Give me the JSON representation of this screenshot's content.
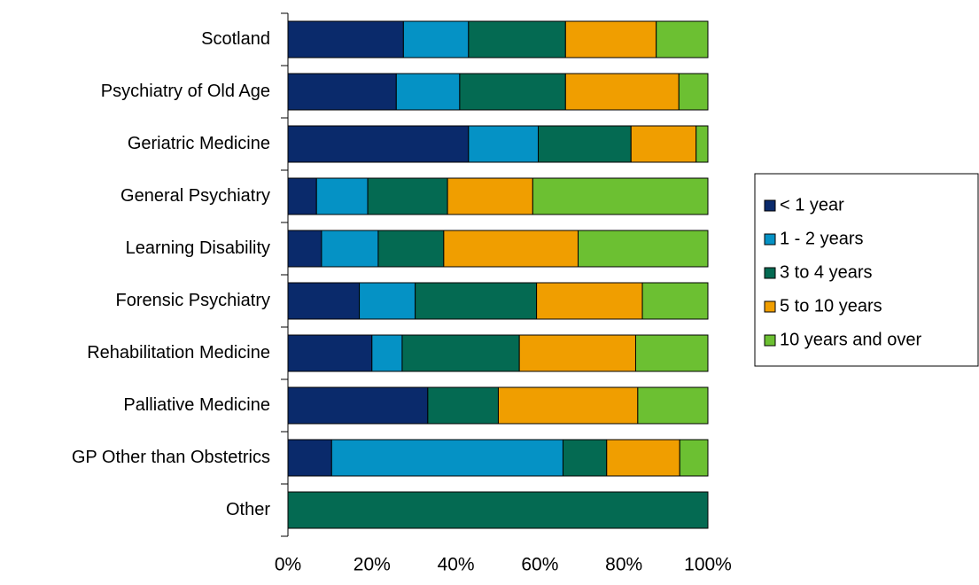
{
  "chart_data": {
    "type": "bar",
    "orientation": "horizontal",
    "stacked": "percent",
    "title": "",
    "xlabel": "",
    "ylabel": "",
    "xlim": [
      0,
      100
    ],
    "x_ticks": [
      "0%",
      "20%",
      "40%",
      "60%",
      "80%",
      "100%"
    ],
    "grid": false,
    "legend_position": "right",
    "categories": [
      "Scotland",
      "Psychiatry of Old Age",
      "Geriatric Medicine",
      "General Psychiatry",
      "Learning Disability",
      "Forensic Psychiatry",
      "Rehabilitation Medicine",
      "Palliative Medicine",
      "GP Other than Obstetrics",
      "Other"
    ],
    "series": [
      {
        "name": "< 1 year",
        "color": "#0a2a6b",
        "values": [
          27.5,
          25.8,
          43.0,
          6.8,
          8.0,
          17.0,
          20.0,
          33.3,
          10.4,
          0.0
        ]
      },
      {
        "name": "1 - 2 years",
        "color": "#0592c5",
        "values": [
          15.5,
          15.1,
          16.6,
          12.2,
          13.5,
          13.3,
          7.2,
          0.0,
          55.1,
          0.0
        ]
      },
      {
        "name": "3 to 4 years",
        "color": "#046a52",
        "values": [
          23.1,
          25.2,
          22.1,
          19.0,
          15.6,
          28.9,
          27.9,
          16.8,
          10.4,
          100.0
        ]
      },
      {
        "name": "5 to 10 years",
        "color": "#f09e00",
        "values": [
          21.6,
          27.0,
          15.5,
          20.3,
          32.0,
          25.2,
          27.7,
          33.2,
          17.4,
          0.0
        ]
      },
      {
        "name": "10 years and over",
        "color": "#6cc032",
        "values": [
          12.3,
          6.9,
          2.8,
          41.7,
          30.9,
          15.6,
          17.2,
          16.7,
          6.7,
          0.0
        ]
      }
    ]
  }
}
